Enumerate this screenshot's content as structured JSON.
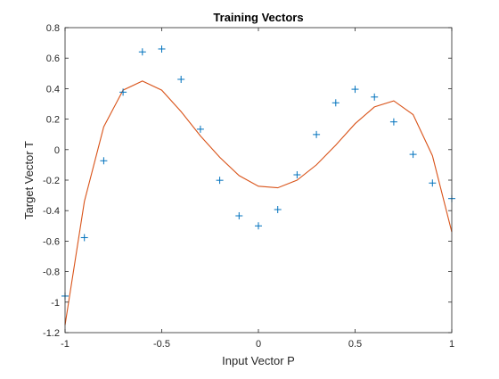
{
  "chart_data": {
    "type": "scatter",
    "title": "Training Vectors",
    "xlabel": "Input Vector P",
    "ylabel": "Target Vector T",
    "xlim": [
      -1,
      1
    ],
    "ylim": [
      -1.2,
      0.8
    ],
    "xticks": [
      -1,
      -0.5,
      0,
      0.5,
      1
    ],
    "xtick_labels": [
      "-1",
      "-0.5",
      "0",
      "0.5",
      "1"
    ],
    "yticks": [
      -1.2,
      -1,
      -0.8,
      -0.6,
      -0.4,
      -0.2,
      0,
      0.2,
      0.4,
      0.6,
      0.8
    ],
    "ytick_labels": [
      "-1.2",
      "-1",
      "-0.8",
      "-0.6",
      "-0.4",
      "-0.2",
      "0",
      "0.2",
      "0.4",
      "0.6",
      "0.8"
    ],
    "grid": false,
    "series": [
      {
        "type": "scatter",
        "marker": "+",
        "color": "#0072BD",
        "x": [
          -1,
          -0.9,
          -0.8,
          -0.7,
          -0.6,
          -0.5,
          -0.4,
          -0.3,
          -0.2,
          -0.1,
          0,
          0.1,
          0.2,
          0.3,
          0.4,
          0.5,
          0.6,
          0.7,
          0.8,
          0.9,
          1
        ],
        "y": [
          -0.96,
          -0.577,
          -0.073,
          0.377,
          0.641,
          0.66,
          0.461,
          0.134,
          -0.201,
          -0.434,
          -0.5,
          -0.393,
          -0.165,
          0.099,
          0.307,
          0.396,
          0.345,
          0.182,
          -0.031,
          -0.219,
          -0.321
        ]
      },
      {
        "type": "line",
        "color": "#D95319",
        "x": [
          -1,
          -0.9,
          -0.8,
          -0.7,
          -0.6,
          -0.5,
          -0.4,
          -0.3,
          -0.2,
          -0.1,
          0,
          0.1,
          0.2,
          0.3,
          0.4,
          0.5,
          0.6,
          0.7,
          0.8,
          0.9,
          1
        ],
        "y": [
          -1.15,
          -0.34,
          0.15,
          0.39,
          0.45,
          0.39,
          0.25,
          0.09,
          -0.05,
          -0.17,
          -0.24,
          -0.25,
          -0.2,
          -0.1,
          0.03,
          0.17,
          0.28,
          0.32,
          0.23,
          -0.04,
          -0.54
        ]
      }
    ]
  }
}
